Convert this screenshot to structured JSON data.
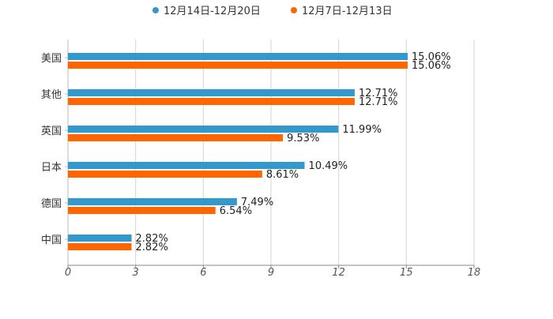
{
  "chart_data": {
    "type": "bar",
    "orientation": "horizontal",
    "categories": [
      "美国",
      "其他",
      "英国",
      "日本",
      "德国",
      "中国"
    ],
    "series": [
      {
        "name": "12月14日-12月20日",
        "color": "#3399CC",
        "values": [
          15.06,
          12.71,
          11.99,
          10.49,
          7.49,
          2.82
        ],
        "labels": [
          "15.06%",
          "12.71%",
          "11.99%",
          "10.49%",
          "7.49%",
          "2.82%"
        ]
      },
      {
        "name": "12月7日-12月13日",
        "color": "#FF6600",
        "values": [
          15.06,
          12.71,
          9.53,
          8.61,
          6.54,
          2.82
        ],
        "labels": [
          "15.06%",
          "12.71%",
          "9.53%",
          "8.61%",
          "6.54%",
          "2.82%"
        ]
      }
    ],
    "xlim": [
      0,
      18
    ],
    "ticks": [
      0,
      3,
      6,
      9,
      12,
      15,
      18
    ],
    "tick_labels": [
      "0",
      "3",
      "6",
      "9",
      "12",
      "15",
      "18"
    ],
    "grid": true,
    "legend_position": "top-center",
    "title": "",
    "xlabel": "",
    "ylabel": ""
  }
}
